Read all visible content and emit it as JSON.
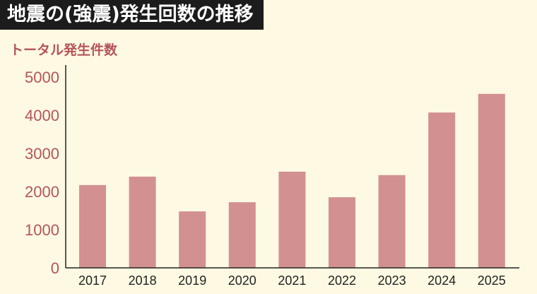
{
  "title": "地震の(強震)発生回数の推移",
  "chart_data": {
    "type": "bar",
    "title": "地震の(強震)発生回数の推移",
    "ylabel": "トータル発生件数",
    "xlabel": "",
    "categories": [
      "2017",
      "2018",
      "2019",
      "2020",
      "2021",
      "2022",
      "2023",
      "2024",
      "2025"
    ],
    "values": [
      2170,
      2390,
      1480,
      1720,
      2520,
      1850,
      2430,
      4070,
      4560
    ],
    "ylim": [
      0,
      5000
    ],
    "yticks": [
      "0",
      "1000",
      "2000",
      "3000",
      "4000",
      "5000"
    ],
    "grid": false,
    "colors": {
      "bar": "#d39090",
      "background": "#fdf9e2",
      "ytick": "#b4555a",
      "title_bg": "#1c1c1c"
    }
  }
}
